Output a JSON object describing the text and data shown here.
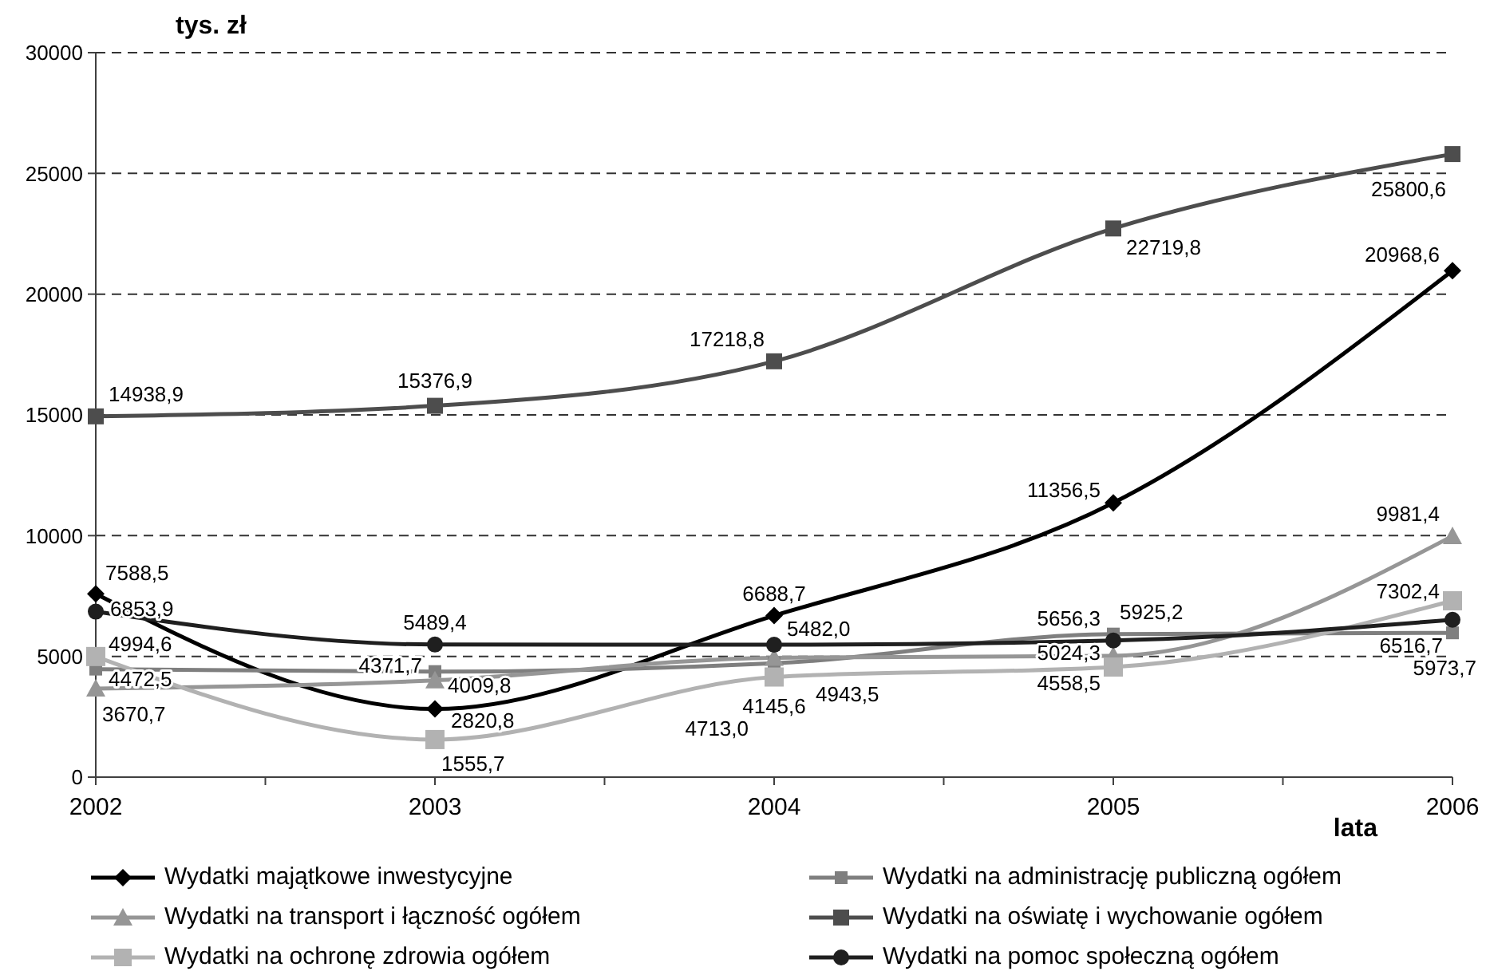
{
  "chart_data": {
    "type": "line",
    "ylabel": "tys. zł",
    "xlabel": "lata",
    "x": [
      2002,
      2003,
      2004,
      2005,
      2006
    ],
    "xlim": [
      2002,
      2006
    ],
    "xticks": [
      2002,
      {
        "value": 2002.5,
        "label": null
      },
      2003,
      {
        "value": 2003.5,
        "label": null
      },
      2004,
      {
        "value": 2004.5,
        "label": null
      },
      2005,
      {
        "value": 2005.5,
        "label": null
      },
      2006
    ],
    "ylim": [
      0,
      30000
    ],
    "yticks": [
      0,
      5000,
      10000,
      15000,
      20000,
      25000,
      30000
    ],
    "grid": "y",
    "legend": "bottom",
    "line_style": "solid",
    "series": [
      {
        "name": "Wydatki majątkowe inwestycyjne",
        "color": "#000000",
        "marker": "diamond",
        "values": [
          7588.5,
          2820.8,
          6688.7,
          11356.5,
          20968.6
        ],
        "value_labels": [
          "7588,5",
          "2820,8",
          "6688,7",
          "11356,5",
          "20968,6"
        ]
      },
      {
        "name": "Wydatki na administrację publiczną ogółem",
        "color": "#7f7f7f",
        "marker": "square",
        "values": [
          4472.5,
          4371.7,
          4713.0,
          5925.2,
          5973.7
        ],
        "value_labels": [
          "4472,5",
          "4371,7",
          "4713,0",
          "5925,2",
          "5973,7"
        ]
      },
      {
        "name": "Wydatki na transport i łączność ogółem",
        "color": "#969696",
        "marker": "triangle",
        "values": [
          3670.7,
          4009.8,
          4943.5,
          5024.3,
          9981.4
        ],
        "value_labels": [
          "3670,7",
          "4009,8",
          "4943,5",
          "5024,3",
          "9981,4"
        ]
      },
      {
        "name": "Wydatki na oświatę i wychowanie ogółem",
        "color": "#4d4d4d",
        "marker": "square",
        "values": [
          14938.9,
          15376.9,
          17218.8,
          22719.8,
          25800.6
        ],
        "value_labels": [
          "14938,9",
          "15376,9",
          "17218,8",
          "22719,8",
          "25800,6"
        ]
      },
      {
        "name": "Wydatki na ochronę zdrowia ogółem",
        "color": "#b2b2b2",
        "marker": "square",
        "values": [
          4994.6,
          1555.7,
          4145.6,
          4558.5,
          7302.4
        ],
        "value_labels": [
          "4994,6",
          "1555,7",
          "4145,6",
          "4558,5",
          "7302,4"
        ]
      },
      {
        "name": "Wydatki na pomoc społeczną ogółem",
        "color": "#1f1f1f",
        "marker": "circle",
        "values": [
          6853.9,
          5489.4,
          5482.0,
          5656.3,
          6516.7
        ],
        "value_labels": [
          "6853,9",
          "5489,4",
          "5482,0",
          "5656,3",
          "6516,7"
        ]
      }
    ]
  }
}
